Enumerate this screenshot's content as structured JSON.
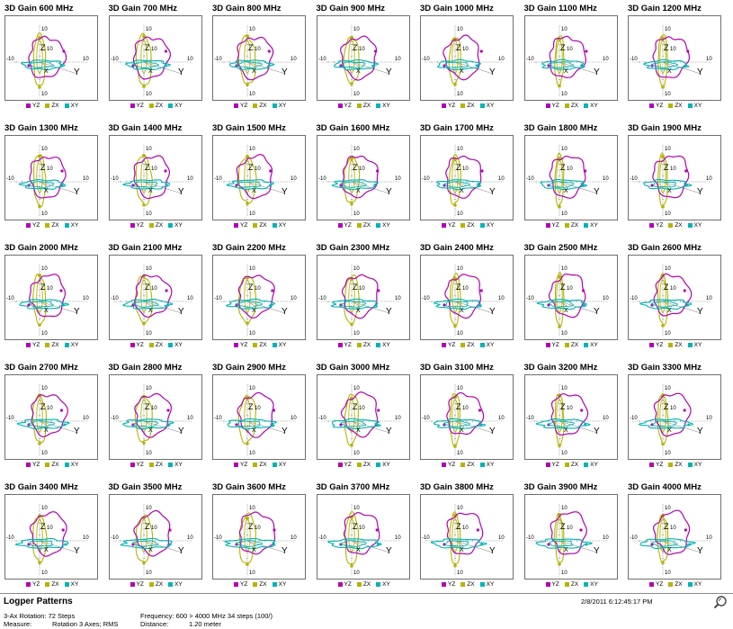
{
  "window": {
    "title": "Logper Patterns"
  },
  "footer": {
    "timestamp": "2/8/2011 6:12:45:17 PM",
    "rotation": "3-Ax Rotation: 72 Steps",
    "measure_label": "Measure:",
    "measure_value": "Rotation 3 Axes; RMS",
    "frequency": "Frequency: 600 > 4000 MHz 34 steps (100/)",
    "distance_label": "Distance:",
    "distance_value": "1.20 meter",
    "zoom_icon": "zoom-magnifier-icon"
  },
  "colors": {
    "YZ": "#b400b4",
    "ZX": "#b4b400",
    "XY": "#00b4b4",
    "axis": "#8c8c8c",
    "border": "#6f6f6f"
  },
  "chart_data": {
    "type": "polar-3d-radiation-pattern-grid",
    "quantity": "3D Gain",
    "unit": "MHz",
    "frequencies": [
      600,
      700,
      800,
      900,
      1000,
      1100,
      1200,
      1300,
      1400,
      1500,
      1600,
      1700,
      1800,
      1900,
      2000,
      2100,
      2200,
      2300,
      2400,
      2500,
      2600,
      2700,
      2800,
      2900,
      3000,
      3100,
      3200,
      3300,
      3400,
      3500,
      3600,
      3700,
      3800,
      3900,
      4000
    ],
    "panel_titles": [
      "3D Gain 600 MHz",
      "3D Gain 700 MHz",
      "3D Gain 800 MHz",
      "3D Gain 900 MHz",
      "3D Gain 1000 MHz",
      "3D Gain 1100 MHz",
      "3D Gain 1200 MHz",
      "3D Gain 1300 MHz",
      "3D Gain 1400 MHz",
      "3D Gain 1500 MHz",
      "3D Gain 1600 MHz",
      "3D Gain 1700 MHz",
      "3D Gain 1800 MHz",
      "3D Gain 1900 MHz",
      "3D Gain 2000 MHz",
      "3D Gain 2100 MHz",
      "3D Gain 2200 MHz",
      "3D Gain 2300 MHz",
      "3D Gain 2400 MHz",
      "3D Gain 2500 MHz",
      "3D Gain 2600 MHz",
      "3D Gain 2700 MHz",
      "3D Gain 2800 MHz",
      "3D Gain 2900 MHz",
      "3D Gain 3000 MHz",
      "3D Gain 3100 MHz",
      "3D Gain 3200 MHz",
      "3D Gain 3300 MHz",
      "3D Gain 3400 MHz",
      "3D Gain 3500 MHz",
      "3D Gain 3600 MHz",
      "3D Gain 3700 MHz",
      "3D Gain 3800 MHz",
      "3D Gain 3900 MHz",
      "3D Gain 4000 MHz"
    ],
    "series": [
      {
        "name": "YZ",
        "color": "#b400b4"
      },
      {
        "name": "ZX",
        "color": "#b4b400"
      },
      {
        "name": "XY",
        "color": "#00b4b4"
      }
    ],
    "axis_labels": {
      "x": "X",
      "y": "Y",
      "z": "Z"
    },
    "axis_tick_value": "10",
    "axis_tick_neg": "-10",
    "axis_range": [
      -10,
      10
    ],
    "grid": "7 columns x 5 rows",
    "legend_position": "below-each-panel"
  }
}
